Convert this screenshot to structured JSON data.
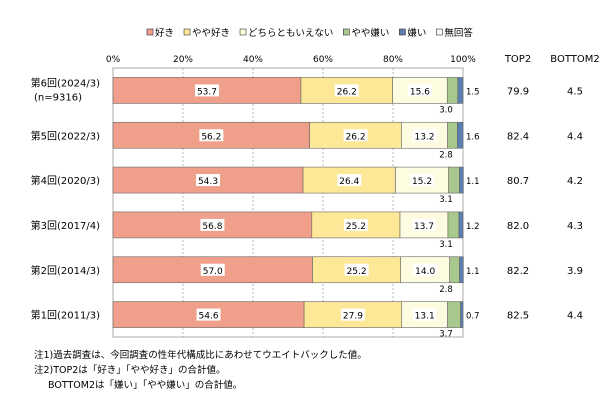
{
  "chart_data": {
    "type": "bar",
    "orientation": "horizontal",
    "stacked": true,
    "percent_axis_ticks": [
      "0%",
      "20%",
      "40%",
      "60%",
      "80%",
      "100%"
    ],
    "xlim": [
      0,
      100
    ],
    "grid": true,
    "legend_position": "top",
    "categories": [
      {
        "label": "第6回(2024/3)",
        "sublabel": "(n=9316)"
      },
      {
        "label": "第5回(2022/3)",
        "sublabel": ""
      },
      {
        "label": "第4回(2020/3)",
        "sublabel": ""
      },
      {
        "label": "第3回(2017/4)",
        "sublabel": ""
      },
      {
        "label": "第2回(2014/3)",
        "sublabel": ""
      },
      {
        "label": "第1回(2011/3)",
        "sublabel": ""
      }
    ],
    "series": [
      {
        "name": "好き",
        "color": "#f0a08a",
        "values": [
          53.7,
          56.2,
          54.3,
          56.8,
          57.0,
          54.6
        ]
      },
      {
        "name": "やや好き",
        "color": "#fde898",
        "values": [
          26.2,
          26.2,
          26.4,
          25.2,
          25.2,
          27.9
        ]
      },
      {
        "name": "どちらともいえない",
        "color": "#fefce0",
        "values": [
          15.6,
          13.2,
          15.2,
          13.7,
          14.0,
          13.1
        ]
      },
      {
        "name": "やや嫌い",
        "color": "#a8c88e",
        "values": [
          3.0,
          2.8,
          3.1,
          3.1,
          2.8,
          3.7
        ]
      },
      {
        "name": "嫌い",
        "color": "#5a7fb0",
        "values": [
          1.5,
          1.6,
          1.1,
          1.2,
          1.1,
          0.7
        ]
      },
      {
        "name": "無回答",
        "color": "#ffffff",
        "values": [
          0.0,
          0.0,
          0.0,
          0.0,
          0.0,
          0.0
        ]
      }
    ],
    "bar_labels": {
      "main": [
        [
          "53.7",
          "26.2",
          "15.6"
        ],
        [
          "56.2",
          "26.2",
          "13.2"
        ],
        [
          "54.3",
          "26.4",
          "15.2"
        ],
        [
          "56.8",
          "25.2",
          "13.7"
        ],
        [
          "57.0",
          "25.2",
          "14.0"
        ],
        [
          "54.6",
          "27.9",
          "13.1"
        ]
      ],
      "below": [
        "3.0",
        "2.8",
        "3.1",
        "3.1",
        "2.8",
        "3.7"
      ],
      "right": [
        "1.5",
        "1.6",
        "1.1",
        "1.2",
        "1.1",
        "0.7"
      ]
    },
    "summary_columns": [
      {
        "header": "TOP2",
        "values": [
          "79.9",
          "82.4",
          "80.7",
          "82.0",
          "82.2",
          "82.5"
        ]
      },
      {
        "header": "BOTTOM2",
        "values": [
          "4.5",
          "4.4",
          "4.2",
          "4.3",
          "3.9",
          "4.4"
        ]
      }
    ]
  },
  "notes": [
    "注1)過去調査は、今回調査の性年代構成比にあわせてウエイトバックした値。",
    "注2)TOP2は「好き」「やや好き」の合計値。",
    "BOTTOM2は「嫌い」「やや嫌い」の合計値。"
  ]
}
